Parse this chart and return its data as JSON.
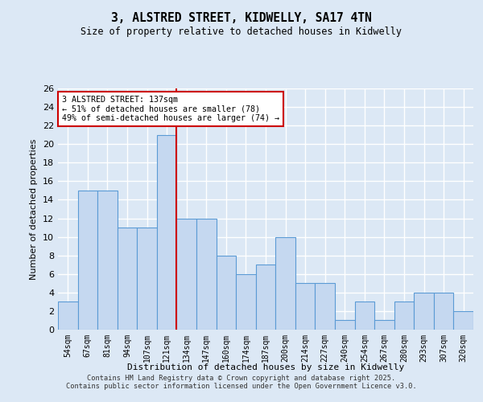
{
  "title": "3, ALSTRED STREET, KIDWELLY, SA17 4TN",
  "subtitle": "Size of property relative to detached houses in Kidwelly",
  "xlabel": "Distribution of detached houses by size in Kidwelly",
  "ylabel": "Number of detached properties",
  "categories": [
    "54sqm",
    "67sqm",
    "81sqm",
    "94sqm",
    "107sqm",
    "121sqm",
    "134sqm",
    "147sqm",
    "160sqm",
    "174sqm",
    "187sqm",
    "200sqm",
    "214sqm",
    "227sqm",
    "240sqm",
    "254sqm",
    "267sqm",
    "280sqm",
    "293sqm",
    "307sqm",
    "320sqm"
  ],
  "values": [
    3,
    15,
    15,
    11,
    11,
    21,
    12,
    12,
    8,
    6,
    7,
    10,
    5,
    5,
    1,
    3,
    1,
    3,
    4,
    4,
    2
  ],
  "bar_color": "#c5d8f0",
  "bar_edge_color": "#5b9bd5",
  "marker_index": 6,
  "annotation_title": "3 ALSTRED STREET: 137sqm",
  "annotation_line1": "← 51% of detached houses are smaller (78)",
  "annotation_line2": "49% of semi-detached houses are larger (74) →",
  "annotation_box_color": "#ffffff",
  "annotation_box_edge": "#cc0000",
  "marker_line_color": "#cc0000",
  "ylim": [
    0,
    26
  ],
  "yticks": [
    0,
    2,
    4,
    6,
    8,
    10,
    12,
    14,
    16,
    18,
    20,
    22,
    24,
    26
  ],
  "background_color": "#dce8f5",
  "grid_color": "#ffffff",
  "footer1": "Contains HM Land Registry data © Crown copyright and database right 2025.",
  "footer2": "Contains public sector information licensed under the Open Government Licence v3.0."
}
